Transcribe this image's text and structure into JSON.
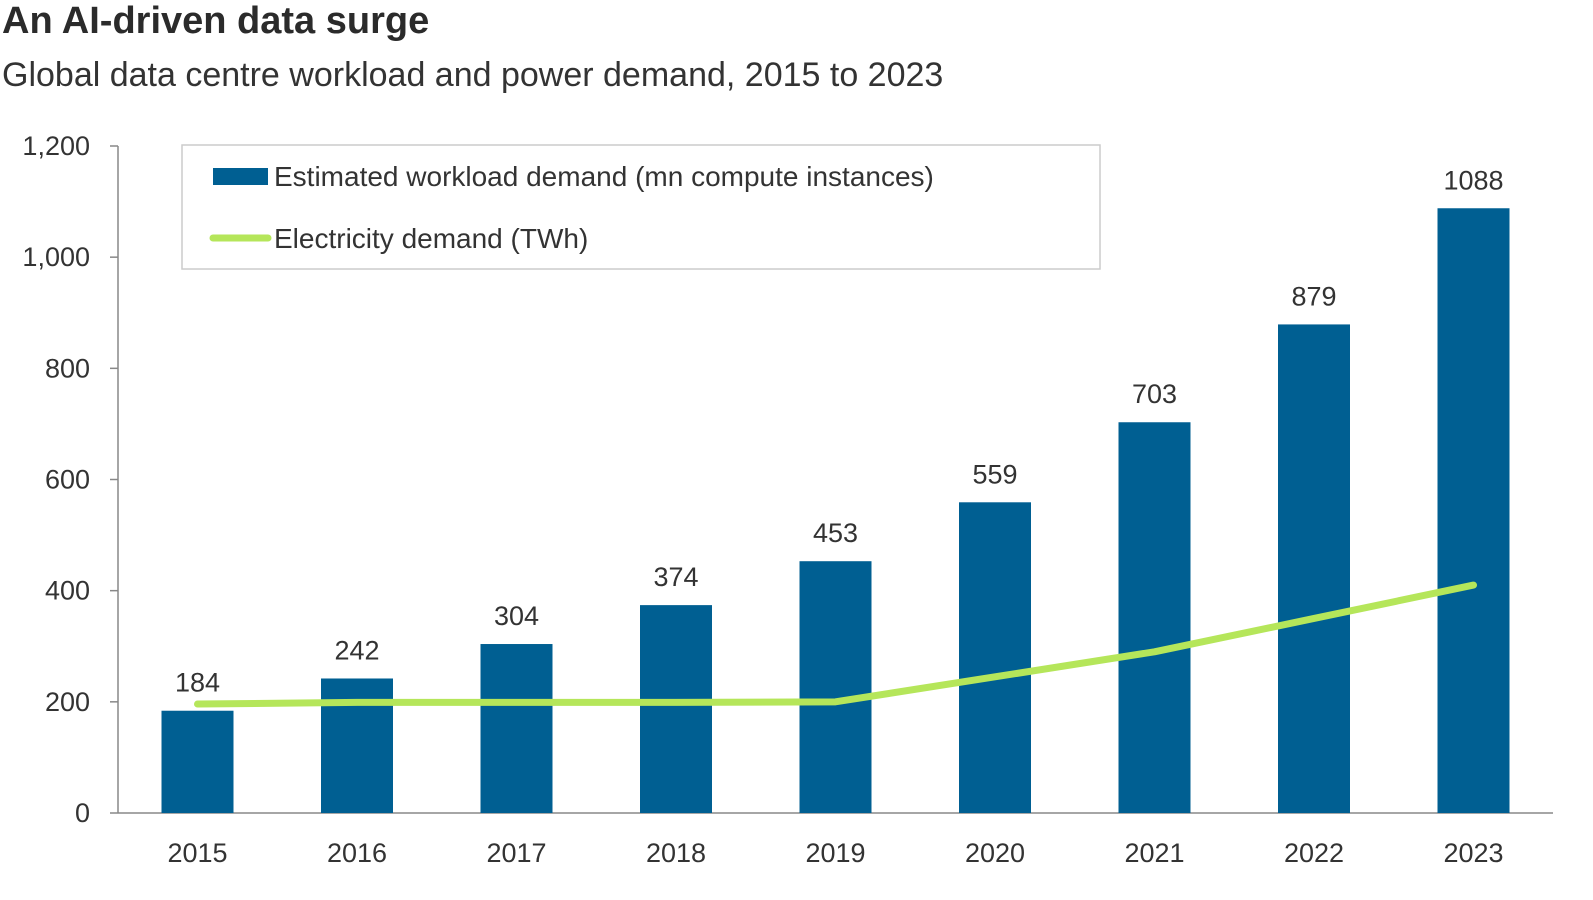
{
  "header": {
    "title": "An AI-driven data surge",
    "subtitle": "Global data centre workload and power demand, 2015 to 2023"
  },
  "colors": {
    "bar": "#005f92",
    "line": "#b5e65a",
    "axis": "#888888",
    "legend_border": "#cccccc"
  },
  "chart_data": {
    "type": "bar",
    "title": "An AI-driven data surge",
    "subtitle": "Global data centre workload and power demand, 2015 to 2023",
    "categories": [
      "2015",
      "2016",
      "2017",
      "2018",
      "2019",
      "2020",
      "2021",
      "2022",
      "2023"
    ],
    "ylim": [
      0,
      1200
    ],
    "yticks": [
      0,
      200,
      400,
      600,
      800,
      1000,
      1200
    ],
    "ytick_labels": [
      "0",
      "200",
      "400",
      "600",
      "800",
      "1,000",
      "1,200"
    ],
    "grid": false,
    "legend_position": "top-left",
    "series": [
      {
        "name": "Estimated workload demand (mn compute instances)",
        "type": "bar",
        "values": [
          184,
          242,
          304,
          374,
          453,
          559,
          703,
          879,
          1088
        ],
        "labels": [
          "184",
          "242",
          "304",
          "374",
          "453",
          "559",
          "703",
          "879",
          "1088"
        ],
        "color": "#005f92"
      },
      {
        "name": "Electricity demand (TWh)",
        "type": "line",
        "values": [
          196,
          199,
          199,
          199,
          200,
          245,
          290,
          350,
          410
        ],
        "color": "#b5e65a"
      }
    ]
  }
}
